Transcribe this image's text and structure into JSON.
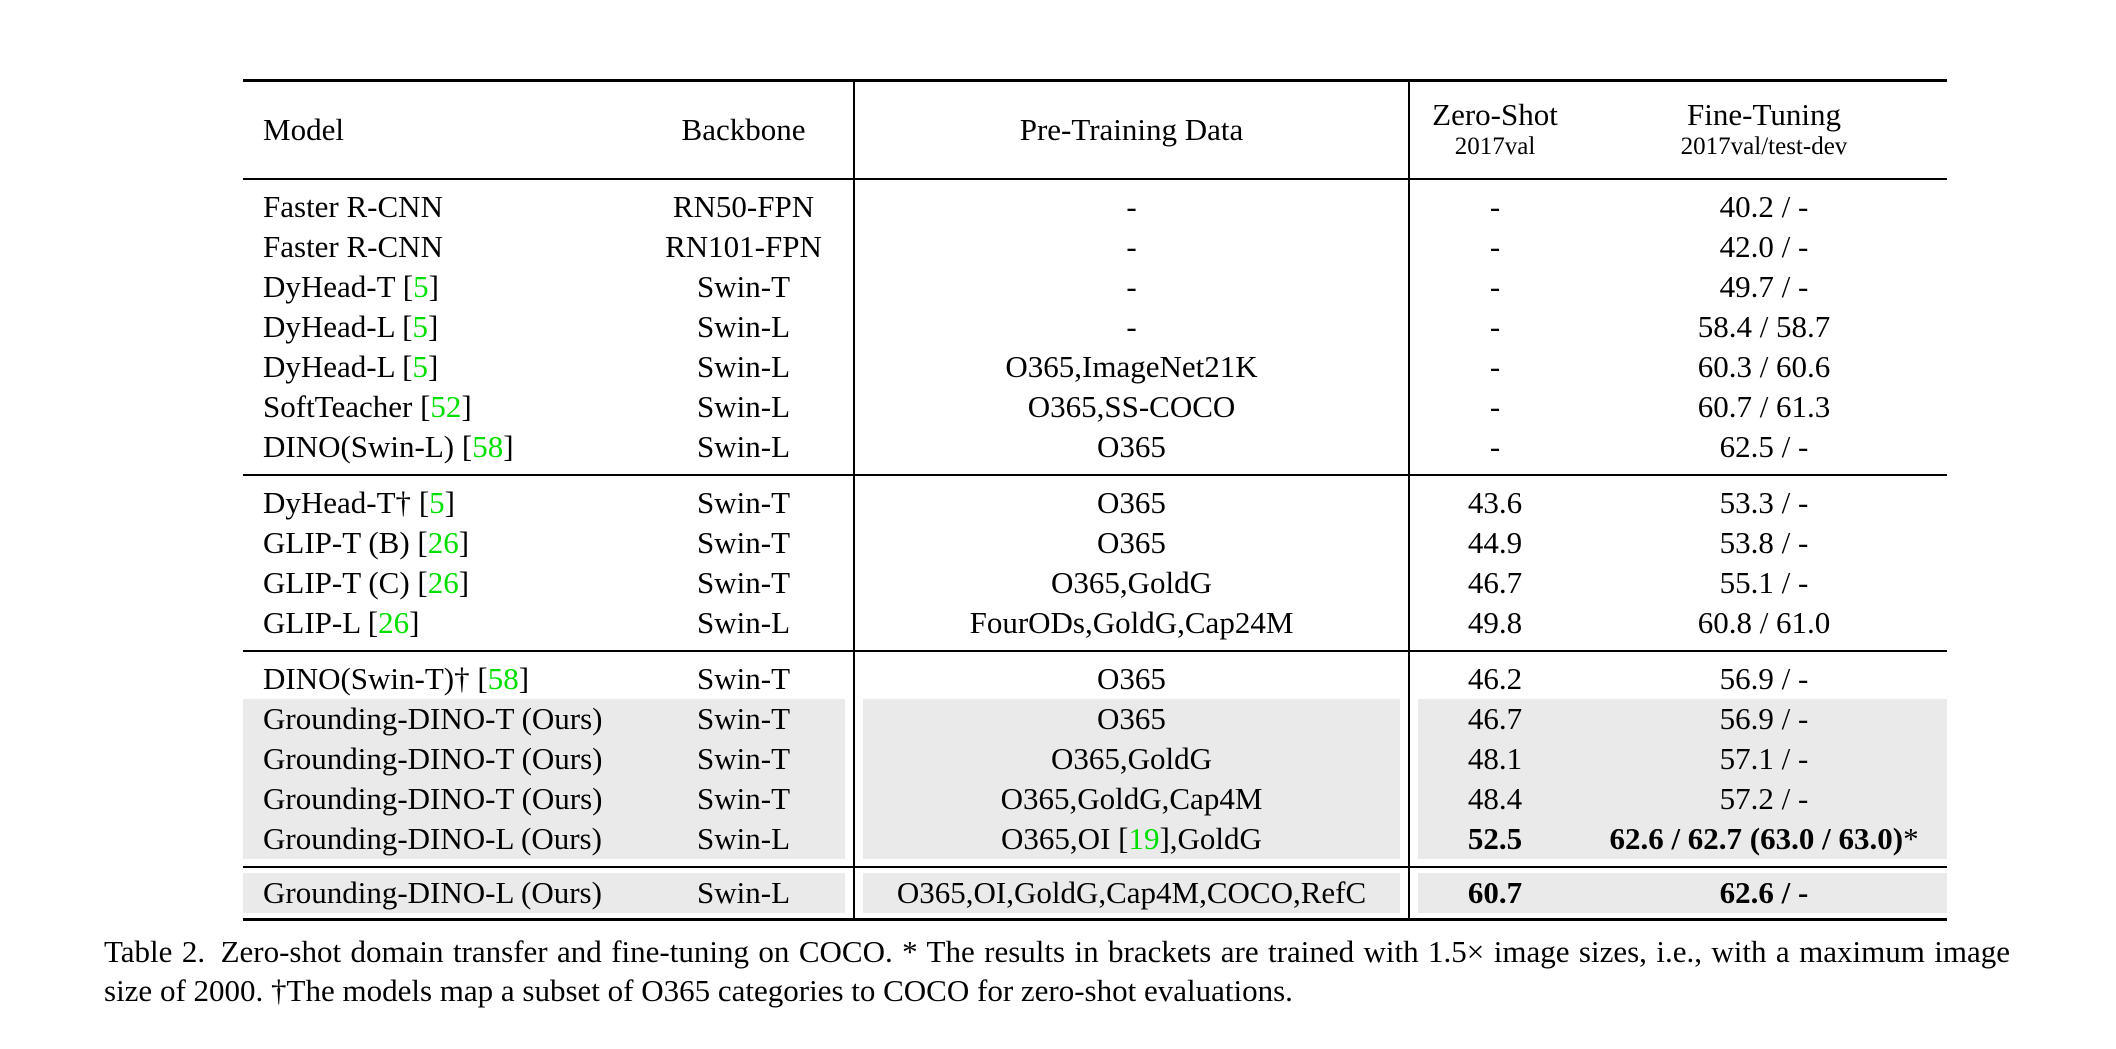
{
  "colors": {
    "citation_green": "#00e000",
    "row_highlight": "#eaeaea",
    "text": "#000000",
    "rule": "#000000"
  },
  "table": {
    "headers": {
      "model": "Model",
      "backbone": "Backbone",
      "pretrain": "Pre-Training Data",
      "zeroshot_title": "Zero-Shot",
      "zeroshot_sub": "2017val",
      "finetune_title": "Fine-Tuning",
      "finetune_sub": "2017val/test-dev"
    },
    "sections": [
      {
        "rows": [
          {
            "model": "Faster R-CNN",
            "backbone": "RN50-FPN",
            "pretrain": "-",
            "zeroshot": "-",
            "finetune": "40.2 / -"
          },
          {
            "model": "Faster R-CNN",
            "backbone": "RN101-FPN",
            "pretrain": "-",
            "zeroshot": "-",
            "finetune": "42.0 / -"
          },
          {
            "model": "DyHead-T",
            "cite": "5",
            "backbone": "Swin-T",
            "pretrain": "-",
            "zeroshot": "-",
            "finetune": "49.7 / -"
          },
          {
            "model": "DyHead-L",
            "cite": "5",
            "backbone": "Swin-L",
            "pretrain": "-",
            "zeroshot": "-",
            "finetune": "58.4 / 58.7"
          },
          {
            "model": "DyHead-L",
            "cite": "5",
            "backbone": "Swin-L",
            "pretrain": "O365,ImageNet21K",
            "zeroshot": "-",
            "finetune": "60.3 / 60.6"
          },
          {
            "model": "SoftTeacher",
            "cite": "52",
            "backbone": "Swin-L",
            "pretrain": "O365,SS-COCO",
            "zeroshot": "-",
            "finetune": "60.7 / 61.3"
          },
          {
            "model": "DINO(Swin-L)",
            "cite": "58",
            "backbone": "Swin-L",
            "pretrain": "O365",
            "zeroshot": "-",
            "finetune": "62.5 / -"
          }
        ]
      },
      {
        "rows": [
          {
            "model": "DyHead-T†",
            "cite": "5",
            "backbone": "Swin-T",
            "pretrain": "O365",
            "zeroshot": "43.6",
            "finetune": "53.3 / -"
          },
          {
            "model": "GLIP-T (B)",
            "cite": "26",
            "backbone": "Swin-T",
            "pretrain": "O365",
            "zeroshot": "44.9",
            "finetune": "53.8 / -"
          },
          {
            "model": "GLIP-T (C)",
            "cite": "26",
            "backbone": "Swin-T",
            "pretrain": "O365,GoldG",
            "zeroshot": "46.7",
            "finetune": "55.1 / -"
          },
          {
            "model": "GLIP-L",
            "cite": "26",
            "backbone": "Swin-L",
            "pretrain": "FourODs,GoldG,Cap24M",
            "zeroshot": "49.8",
            "finetune": "60.8 / 61.0"
          }
        ]
      },
      {
        "rows": [
          {
            "model": "DINO(Swin-T)†",
            "cite": "58",
            "backbone": "Swin-T",
            "pretrain": "O365",
            "zeroshot": "46.2",
            "finetune": "56.9 / -"
          },
          {
            "model": "Grounding-DINO-T (Ours)",
            "backbone": "Swin-T",
            "pretrain": "O365",
            "zeroshot": "46.7",
            "finetune": "56.9 / -",
            "highlight": true
          },
          {
            "model": "Grounding-DINO-T (Ours)",
            "backbone": "Swin-T",
            "pretrain": "O365,GoldG",
            "zeroshot": "48.1",
            "finetune": "57.1 / -",
            "highlight": true
          },
          {
            "model": "Grounding-DINO-T (Ours)",
            "backbone": "Swin-T",
            "pretrain": "O365,GoldG,Cap4M",
            "zeroshot": "48.4",
            "finetune": "57.2 / -",
            "highlight": true
          },
          {
            "model": "Grounding-DINO-L (Ours)",
            "backbone": "Swin-L",
            "pretrain_parts": [
              "O365,OI ",
              "19",
              ",GoldG"
            ],
            "zeroshot": "52.5",
            "finetune": "62.6 / 62.7 (63.0 / 63.0)",
            "finetune_suffix": "*",
            "bold": true,
            "highlight": true
          }
        ]
      },
      {
        "rows": [
          {
            "model": "Grounding-DINO-L (Ours)",
            "backbone": "Swin-L",
            "pretrain": "O365,OI,GoldG,Cap4M,COCO,RefC",
            "zeroshot": "60.7",
            "finetune": "62.6 / -",
            "bold": true,
            "highlight": true
          }
        ]
      }
    ]
  },
  "caption": {
    "text": "Table 2. Zero-shot domain transfer and fine-tuning on COCO. * The results in brackets are trained with 1.5× image sizes, i.e., with a maximum image size of 2000. †The models map a subset of O365 categories to COCO for zero-shot evaluations."
  }
}
